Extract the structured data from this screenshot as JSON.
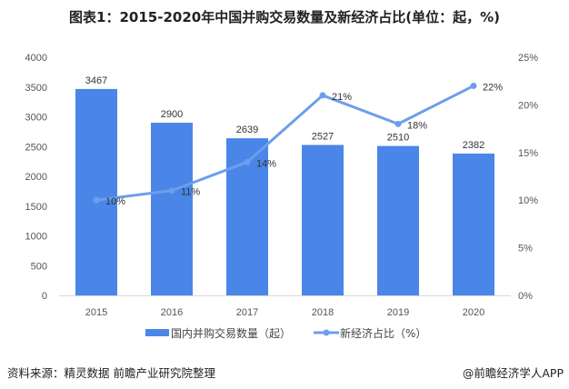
{
  "title": "图表1：2015-2020年中国并购交易数量及新经济占比(单位：起，%)",
  "source": "资料来源：精灵数据 前瞻产业研究院整理",
  "brand": "@前瞻经济学人APP",
  "chart_data": {
    "type": "bar",
    "title": "图表1：2015-2020年中国并购交易数量及新经济占比(单位：起，%)",
    "categories": [
      "2015",
      "2016",
      "2017",
      "2018",
      "2019",
      "2020"
    ],
    "series": [
      {
        "name": "国内并购交易数量（起）",
        "type": "bar",
        "axis": "left",
        "color": "#4a86e8",
        "values": [
          3467,
          2900,
          2639,
          2527,
          2510,
          2382
        ],
        "labels": [
          "3467",
          "2900",
          "2639",
          "2527",
          "2510",
          "2382"
        ]
      },
      {
        "name": "新经济占比（%）",
        "type": "line",
        "axis": "right",
        "color": "#6d9eeb",
        "values": [
          10,
          11,
          14,
          21,
          18,
          22
        ],
        "labels": [
          "10%",
          "11%",
          "14%",
          "21%",
          "18%",
          "22%"
        ]
      }
    ],
    "left_axis": {
      "ylim": [
        0,
        4000
      ],
      "ticks": [
        "0",
        "500",
        "1000",
        "1500",
        "2000",
        "2500",
        "3000",
        "3500",
        "4000"
      ]
    },
    "right_axis": {
      "ylim": [
        0,
        25
      ],
      "ticks": [
        "0%",
        "5%",
        "10%",
        "15%",
        "20%",
        "25%"
      ]
    },
    "grid": false,
    "legend": "bottom"
  }
}
